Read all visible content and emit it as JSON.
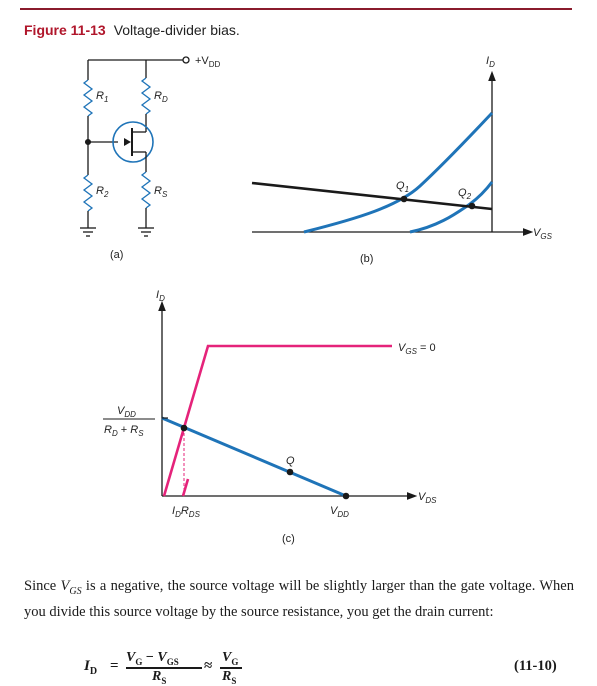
{
  "figure": {
    "number": "Figure 11-13",
    "title": "Voltage-divider bias."
  },
  "circuit": {
    "supply_label": "+V",
    "supply_sub": "DD",
    "r1_label": "R",
    "r1_sub": "1",
    "r2_label": "R",
    "r2_sub": "2",
    "rd_label": "R",
    "rd_sub": "D",
    "rs_label": "R",
    "rs_sub": "S",
    "caption": "(a)"
  },
  "transfer_graph": {
    "y_axis_label": "I",
    "y_axis_sub": "D",
    "x_axis_label": "V",
    "x_axis_sub": "GS",
    "q1_label": "Q",
    "q1_sub": "1",
    "q2_label": "Q",
    "q2_sub": "2",
    "caption": "(b)"
  },
  "drain_graph": {
    "y_axis_label": "I",
    "y_axis_sub": "D",
    "x_axis_label": "V",
    "x_axis_sub": "DS",
    "curve_label_main": "V",
    "curve_label_sub": "GS",
    "curve_label_rest": " = 0",
    "frac_num": "V",
    "frac_num_sub": "DD",
    "frac_den_a": "R",
    "frac_den_a_sub": "D",
    "frac_den_plus": " + ",
    "frac_den_b": "R",
    "frac_den_b_sub": "S",
    "idrds_a": "I",
    "idrds_a_sub": "D",
    "idrds_b": "R",
    "idrds_b_sub": "DS",
    "q_label": "Q",
    "vdd_label": "V",
    "vdd_sub": "DD",
    "caption": "(c)"
  },
  "text": {
    "paragraph": "Since Vₑₛ is a negative, the source voltage will be slightly larger than the gate voltage. When you divide this source voltage by the source resistance, you get the drain current:",
    "para_part1": "Since ",
    "para_vgs": "V",
    "para_vgs_sub": "GS",
    "para_part2": " is a negative, the source voltage will be slightly larger than the gate voltage. When you divide this source voltage by the source resistance, you get the drain current:"
  },
  "equation": {
    "lhs": "I",
    "lhs_sub": "D",
    "equals": "=",
    "num1": "V",
    "num1_sub": "G",
    "minus": " − ",
    "num1b": "V",
    "num1b_sub": "GS",
    "den1": "R",
    "den1_sub": "S",
    "approx": "≈",
    "num2": "V",
    "num2_sub": "G",
    "den2": "R",
    "den2_sub": "S",
    "number": "(11-10)"
  },
  "colors": {
    "rule": "#8a1b2c",
    "figure_number": "#b0162b",
    "blue_curve": "#1f74b8",
    "magenta_curve": "#e5237a",
    "black": "#1a1a1a"
  }
}
